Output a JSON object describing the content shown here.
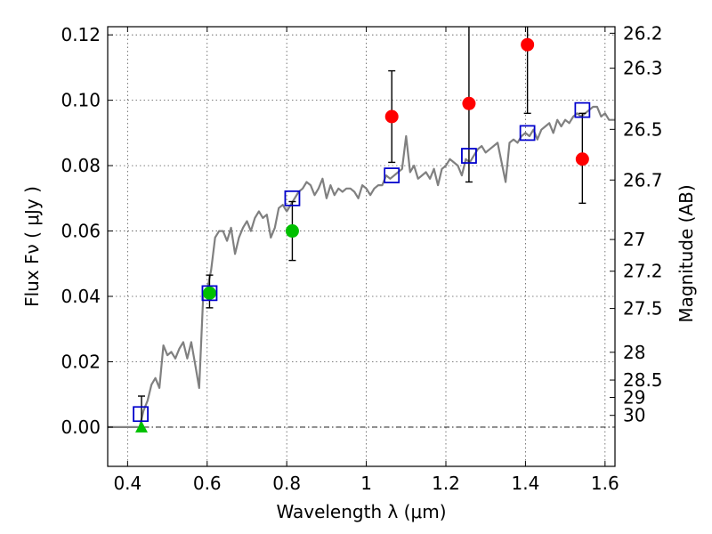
{
  "chart_data": {
    "type": "scatter",
    "xlabel": "Wavelength  λ (μm)",
    "ylabel": "Flux  Fν  ( μJy )",
    "ylabel_right": "Magnitude (AB)",
    "xlim": [
      0.35,
      1.625
    ],
    "ylim": [
      -0.012,
      0.1225
    ],
    "grid": true,
    "x_ticks": [
      0.4,
      0.6,
      0.8,
      1.0,
      1.2,
      1.4,
      1.6
    ],
    "x_tick_labels": [
      "0.4",
      "0.6",
      "0.8",
      "1",
      "1.2",
      "1.4",
      "1.6"
    ],
    "y_ticks": [
      0.0,
      0.02,
      0.04,
      0.06,
      0.08,
      0.1,
      0.12
    ],
    "y_tick_labels": [
      "0.00",
      "0.02",
      "0.04",
      "0.06",
      "0.08",
      "0.10",
      "0.12"
    ],
    "right_ticks": [
      {
        "label": "26.2",
        "flux": 0.1205
      },
      {
        "label": "26.3",
        "flux": 0.1098
      },
      {
        "label": "26.5",
        "flux": 0.0911
      },
      {
        "label": "26.7",
        "flux": 0.0756
      },
      {
        "label": "27",
        "flux": 0.0574
      },
      {
        "label": "27.2",
        "flux": 0.0477
      },
      {
        "label": "27.5",
        "flux": 0.0363
      },
      {
        "label": "28",
        "flux": 0.0229
      },
      {
        "label": "28.5",
        "flux": 0.0144
      },
      {
        "label": "29",
        "flux": 0.0091
      },
      {
        "label": "30",
        "flux": 0.0036
      }
    ],
    "series": [
      {
        "kind": "line",
        "color": "#808080",
        "x": [
          0.35,
          0.43,
          0.44,
          0.45,
          0.46,
          0.47,
          0.48,
          0.49,
          0.5,
          0.51,
          0.52,
          0.53,
          0.54,
          0.55,
          0.56,
          0.57,
          0.58,
          0.59,
          0.6,
          0.61,
          0.62,
          0.63,
          0.64,
          0.65,
          0.66,
          0.67,
          0.68,
          0.69,
          0.7,
          0.71,
          0.72,
          0.73,
          0.74,
          0.75,
          0.76,
          0.77,
          0.78,
          0.79,
          0.8,
          0.81,
          0.82,
          0.83,
          0.84,
          0.85,
          0.86,
          0.87,
          0.88,
          0.89,
          0.9,
          0.91,
          0.92,
          0.93,
          0.94,
          0.95,
          0.96,
          0.97,
          0.98,
          0.99,
          1.0,
          1.01,
          1.02,
          1.03,
          1.04,
          1.05,
          1.06,
          1.07,
          1.08,
          1.09,
          1.1,
          1.11,
          1.12,
          1.13,
          1.14,
          1.15,
          1.16,
          1.17,
          1.18,
          1.19,
          1.2,
          1.21,
          1.22,
          1.23,
          1.24,
          1.25,
          1.26,
          1.27,
          1.28,
          1.29,
          1.3,
          1.31,
          1.32,
          1.33,
          1.34,
          1.35,
          1.36,
          1.37,
          1.38,
          1.39,
          1.4,
          1.41,
          1.42,
          1.43,
          1.44,
          1.45,
          1.46,
          1.47,
          1.48,
          1.49,
          1.5,
          1.51,
          1.52,
          1.53,
          1.54,
          1.55,
          1.56,
          1.57,
          1.58,
          1.59,
          1.6,
          1.61,
          1.625
        ],
        "y": [
          0.0,
          0.0,
          0.005,
          0.008,
          0.013,
          0.015,
          0.012,
          0.025,
          0.022,
          0.023,
          0.021,
          0.024,
          0.026,
          0.021,
          0.026,
          0.019,
          0.012,
          0.04,
          0.042,
          0.048,
          0.058,
          0.06,
          0.06,
          0.057,
          0.061,
          0.053,
          0.058,
          0.061,
          0.063,
          0.06,
          0.064,
          0.066,
          0.064,
          0.065,
          0.058,
          0.061,
          0.067,
          0.068,
          0.066,
          0.068,
          0.07,
          0.072,
          0.073,
          0.075,
          0.074,
          0.071,
          0.073,
          0.076,
          0.07,
          0.074,
          0.071,
          0.073,
          0.072,
          0.073,
          0.073,
          0.072,
          0.07,
          0.074,
          0.073,
          0.071,
          0.073,
          0.074,
          0.074,
          0.077,
          0.076,
          0.077,
          0.078,
          0.079,
          0.089,
          0.078,
          0.08,
          0.076,
          0.077,
          0.078,
          0.076,
          0.079,
          0.074,
          0.079,
          0.08,
          0.082,
          0.081,
          0.08,
          0.077,
          0.082,
          0.081,
          0.083,
          0.085,
          0.086,
          0.084,
          0.085,
          0.086,
          0.087,
          0.081,
          0.075,
          0.087,
          0.088,
          0.087,
          0.089,
          0.09,
          0.089,
          0.091,
          0.088,
          0.091,
          0.092,
          0.093,
          0.09,
          0.094,
          0.092,
          0.094,
          0.093,
          0.095,
          0.096,
          0.095,
          0.096,
          0.097,
          0.098,
          0.098,
          0.095,
          0.096,
          0.094,
          0.094
        ]
      },
      {
        "kind": "square",
        "color": "#0000cc",
        "x": [
          0.433,
          0.606,
          0.814,
          1.064,
          1.258,
          1.405,
          1.543
        ],
        "y": [
          0.004,
          0.041,
          0.07,
          0.077,
          0.083,
          0.09,
          0.097
        ]
      },
      {
        "kind": "circle",
        "color": "#00c000",
        "x": [
          0.606,
          0.814
        ],
        "y": [
          0.041,
          0.06
        ],
        "yerr_low": [
          0.0045,
          0.009
        ],
        "yerr_high": [
          0.0055,
          0.009
        ]
      },
      {
        "kind": "triangle",
        "color": "#00c000",
        "x": [
          0.435
        ],
        "y": [
          0.0
        ],
        "yerr_low": [
          0.0
        ],
        "yerr_high": [
          0.0095
        ]
      },
      {
        "kind": "circle",
        "color": "#ff0000",
        "x": [
          1.064,
          1.258,
          1.405,
          1.543
        ],
        "y": [
          0.095,
          0.099,
          0.117,
          0.082
        ],
        "yerr_low": [
          0.014,
          0.024,
          0.021,
          0.0135
        ],
        "yerr_high": [
          0.014,
          0.026,
          0.01,
          0.014
        ]
      }
    ]
  }
}
